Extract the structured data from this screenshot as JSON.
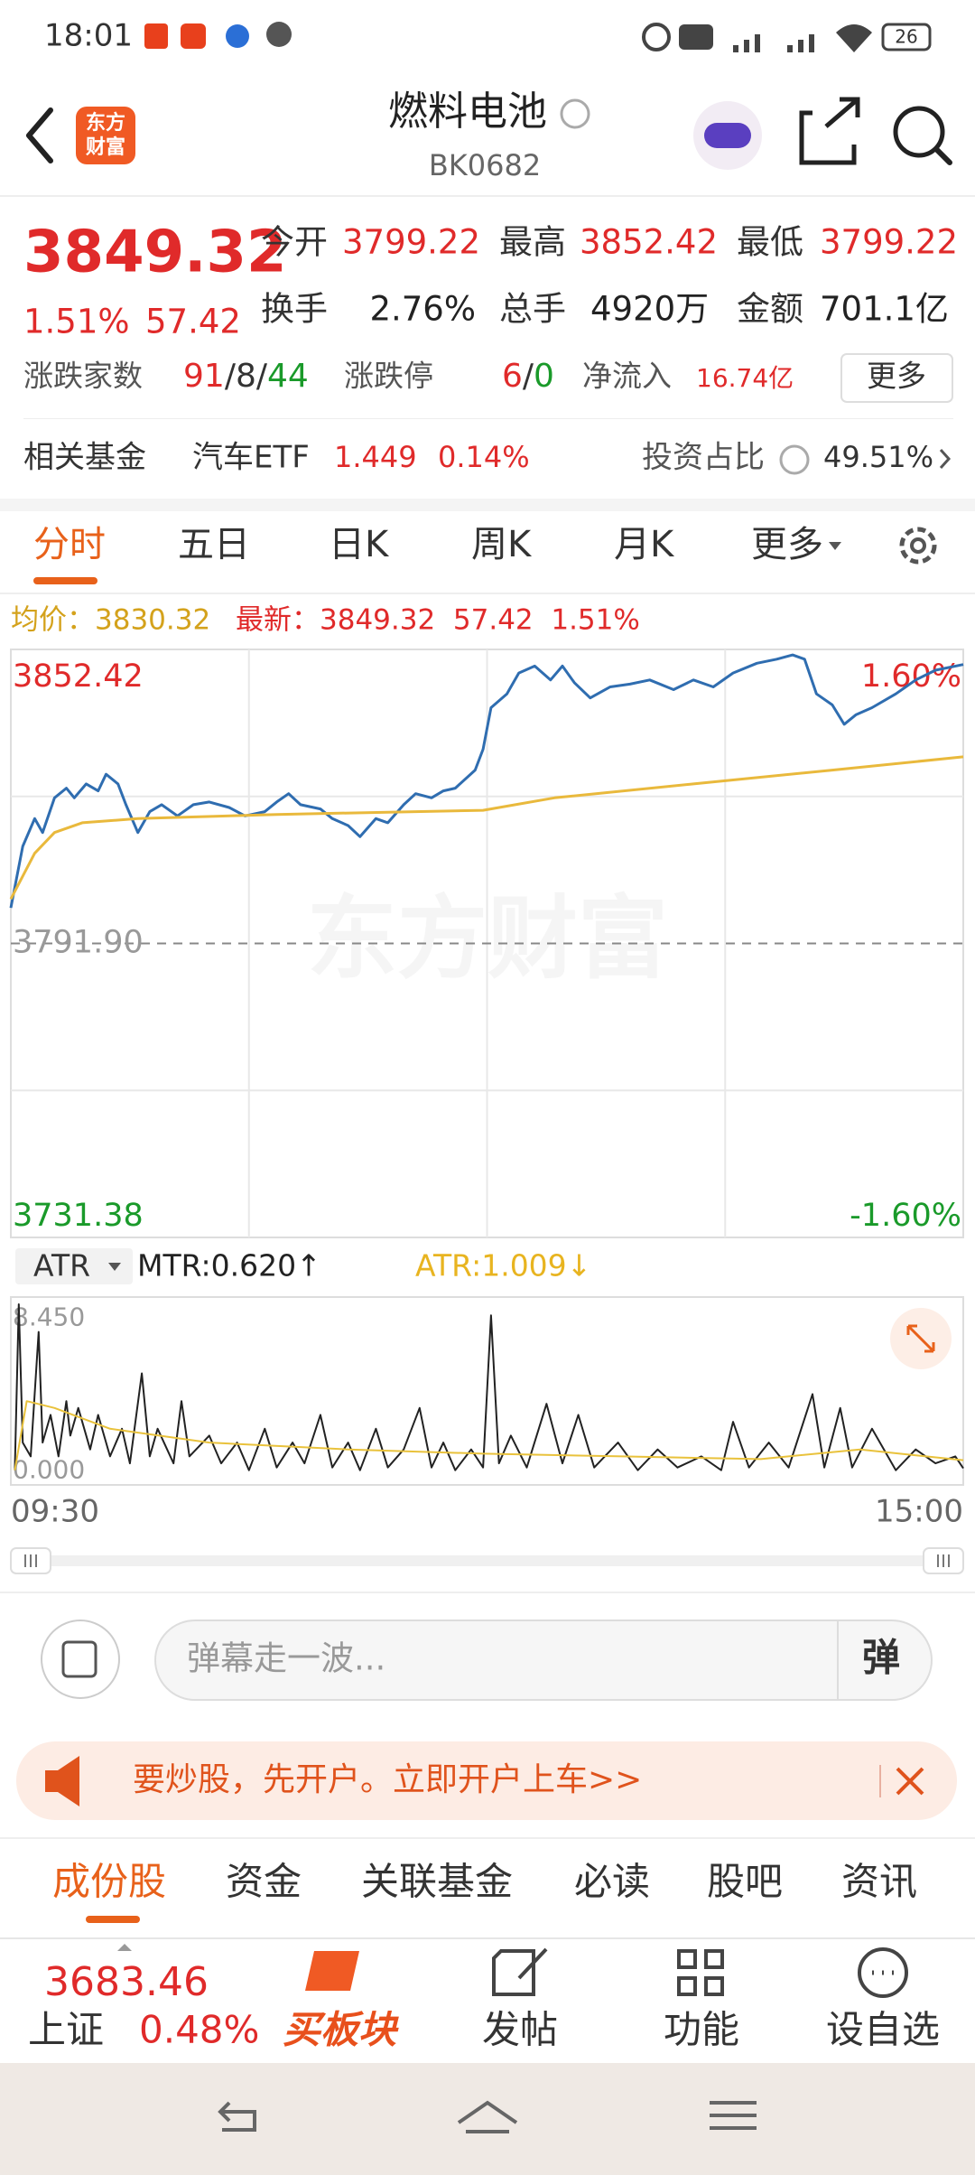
{
  "status_bar": {
    "time": "18:01",
    "battery": "26"
  },
  "header": {
    "logo": [
      "东方",
      "财富"
    ],
    "title": "燃料电池",
    "code": "BK0682"
  },
  "quote": {
    "price": "3849.32",
    "change_pct": "1.51%",
    "change": "57.42",
    "fields": [
      {
        "label": "今开",
        "value": "3799.22"
      },
      {
        "label": "最高",
        "value": "3852.42"
      },
      {
        "label": "最低",
        "value": "3799.22"
      },
      {
        "label": "换手",
        "value": "2.76%"
      },
      {
        "label": "总手",
        "value": "4920万"
      },
      {
        "label": "金额",
        "value": "701.1亿"
      }
    ]
  },
  "stats": {
    "breadth_label": "涨跌家数",
    "up": "91",
    "flat": "8",
    "down": "44",
    "separator": "/",
    "limit_label": "涨跌停",
    "limit_up": "6",
    "limit_down": "0",
    "inflow_label": "净流入",
    "inflow": "16.74亿",
    "more": "更多"
  },
  "fund": {
    "label": "相关基金",
    "name": "汽车ETF",
    "price": "1.449",
    "pct": "0.14%",
    "ratio_label": "投资占比",
    "ratio": "49.51%"
  },
  "tabs": [
    "分时",
    "五日",
    "日K",
    "周K",
    "月K",
    "更多"
  ],
  "chart_legend": {
    "avg": "均价：3830.32",
    "latest": "最新：3849.32  57.42  1.51%"
  },
  "chart_data": [
    {
      "type": "line",
      "watermark": "东方财富",
      "xlim": [
        0,
        240
      ],
      "xticks": [
        {
          "value": 0,
          "label": "09:30"
        },
        {
          "value": 240,
          "label": "15:00"
        }
      ],
      "xgrid": [
        60,
        120,
        180
      ],
      "ylim": [
        3731.38,
        3852.42
      ],
      "yticks": [
        3852.42,
        {
          "value": 3791.9,
          "label": "3791.90"
        },
        3731.38
      ],
      "ytick_colors": [
        "#e02a2a",
        "#999999",
        "#1a9a2a"
      ],
      "ygrid": [
        3822.16,
        3761.64
      ],
      "y2lim": [
        -1.6,
        1.6
      ],
      "y2ticks": [
        {
          "value": 1.6,
          "label": "1.60%"
        },
        {
          "value": -1.6,
          "label": "-1.60%"
        }
      ],
      "y2tick_colors": [
        "#e02a2a",
        "#1a9a2a"
      ],
      "series": [
        {
          "color": "#2f6db0",
          "x": [
            0,
            3,
            6,
            8,
            11,
            14,
            16,
            19,
            22,
            24,
            27,
            29,
            32,
            35,
            38,
            42,
            46,
            50,
            55,
            59,
            64,
            67,
            70,
            73,
            78,
            81,
            85,
            88,
            92,
            95,
            99,
            102,
            106,
            109,
            112,
            117,
            119,
            121,
            125,
            128,
            132,
            136,
            139,
            142,
            146,
            151,
            156,
            161,
            167,
            172,
            177,
            182,
            188,
            193,
            197,
            200,
            203,
            207,
            210,
            213,
            217,
            223,
            228,
            233,
            240
          ],
          "values": [
            3799.22,
            3811.88,
            3817.59,
            3814.74,
            3821.87,
            3823.87,
            3821.87,
            3824.73,
            3823.3,
            3826.73,
            3824.73,
            3820.45,
            3814.74,
            3819.02,
            3820.45,
            3818.16,
            3820.45,
            3821.02,
            3819.88,
            3818.16,
            3819.02,
            3821.02,
            3822.73,
            3820.45,
            3819.59,
            3817.59,
            3816.17,
            3813.88,
            3817.59,
            3816.74,
            3820.45,
            3822.73,
            3821.87,
            3823.3,
            3823.87,
            3827.58,
            3831.87,
            3840.43,
            3843.28,
            3847.57,
            3848.99,
            3846.14,
            3848.99,
            3845.57,
            3842.43,
            3844.71,
            3845.28,
            3846.14,
            3844.14,
            3846.14,
            3844.71,
            3847.57,
            3849.57,
            3850.42,
            3851.28,
            3850.42,
            3843.28,
            3841.0,
            3837.0,
            3839.0,
            3840.43,
            3843.28,
            3846.14,
            3848.14,
            3849.32
          ]
        },
        {
          "color": "#e9b93c",
          "x": [
            0,
            6,
            11,
            18,
            32,
            67,
            119,
            137,
            172,
            207,
            240
          ],
          "values": [
            3801.04,
            3810.46,
            3814.74,
            3816.74,
            3817.59,
            3818.45,
            3819.31,
            3821.87,
            3824.73,
            3827.58,
            3830.32
          ]
        }
      ]
    },
    {
      "type": "line",
      "indicator": "ATR",
      "legend": [
        "MTR:0.620↑",
        "ATR:1.009↓"
      ],
      "xlim": [
        0,
        240
      ],
      "ylim": [
        0,
        8.45
      ],
      "yticks": [
        {
          "value": 8.45,
          "label": "8.450"
        },
        {
          "value": 0,
          "label": "0.000"
        }
      ],
      "ytick_colors": [
        "#999999",
        "#999999"
      ],
      "series": [
        {
          "color": "#222222",
          "x": [
            1,
            2,
            3,
            5,
            7,
            8,
            10,
            12,
            14,
            15,
            17,
            20,
            22,
            25,
            28,
            30,
            33,
            35,
            37,
            41,
            43,
            45,
            50,
            53,
            57,
            60,
            64,
            67,
            71,
            74,
            78,
            81,
            85,
            88,
            92,
            95,
            99,
            103,
            106,
            109,
            112,
            116,
            119,
            121,
            123,
            126,
            130,
            135,
            139,
            143,
            147,
            153,
            158,
            163,
            168,
            174,
            179,
            182,
            186,
            191,
            196,
            202,
            205,
            209,
            212,
            217,
            223,
            228,
            233,
            238,
            240
          ],
          "values": [
            0.53,
            8.45,
            1.85,
            1.19,
            7.13,
            1.85,
            3.17,
            1.19,
            3.83,
            2.18,
            3.5,
            1.52,
            3.17,
            1.19,
            2.51,
            0.86,
            5.15,
            1.19,
            2.51,
            0.86,
            3.83,
            1.19,
            2.18,
            0.86,
            1.85,
            0.53,
            2.51,
            0.66,
            1.85,
            0.86,
            3.17,
            0.66,
            1.85,
            0.53,
            2.51,
            0.66,
            1.52,
            3.5,
            0.66,
            1.85,
            0.53,
            1.52,
            0.66,
            7.92,
            0.86,
            2.18,
            0.66,
            3.7,
            0.86,
            3.17,
            0.66,
            1.85,
            0.53,
            1.52,
            0.66,
            1.19,
            0.53,
            2.84,
            0.66,
            1.85,
            0.66,
            4.16,
            0.66,
            3.5,
            0.66,
            2.51,
            0.53,
            1.52,
            0.86,
            1.19,
            0.62
          ]
        },
        {
          "color": "#e9c23c",
          "x": [
            1,
            4,
            11,
            25,
            50,
            85,
            119,
            154,
            189,
            214,
            224,
            240
          ],
          "values": [
            0.53,
            3.83,
            3.5,
            2.51,
            1.85,
            1.52,
            1.32,
            1.19,
            1.06,
            1.52,
            1.32,
            1.009
          ]
        }
      ]
    }
  ],
  "comment": {
    "placeholder": "弹幕走一波...",
    "button": "弹"
  },
  "banner": {
    "text": "要炒股，先开户。立即开户上车>>"
  },
  "bottom_tabs": [
    "成份股",
    "资金",
    "关联基金",
    "必读",
    "股吧",
    "资讯"
  ],
  "bottom_bar": {
    "index_price": "3683.46",
    "index_name": "上证",
    "index_pct": "0.48%",
    "buttons": [
      "买板块",
      "发帖",
      "功能",
      "设自选"
    ]
  }
}
